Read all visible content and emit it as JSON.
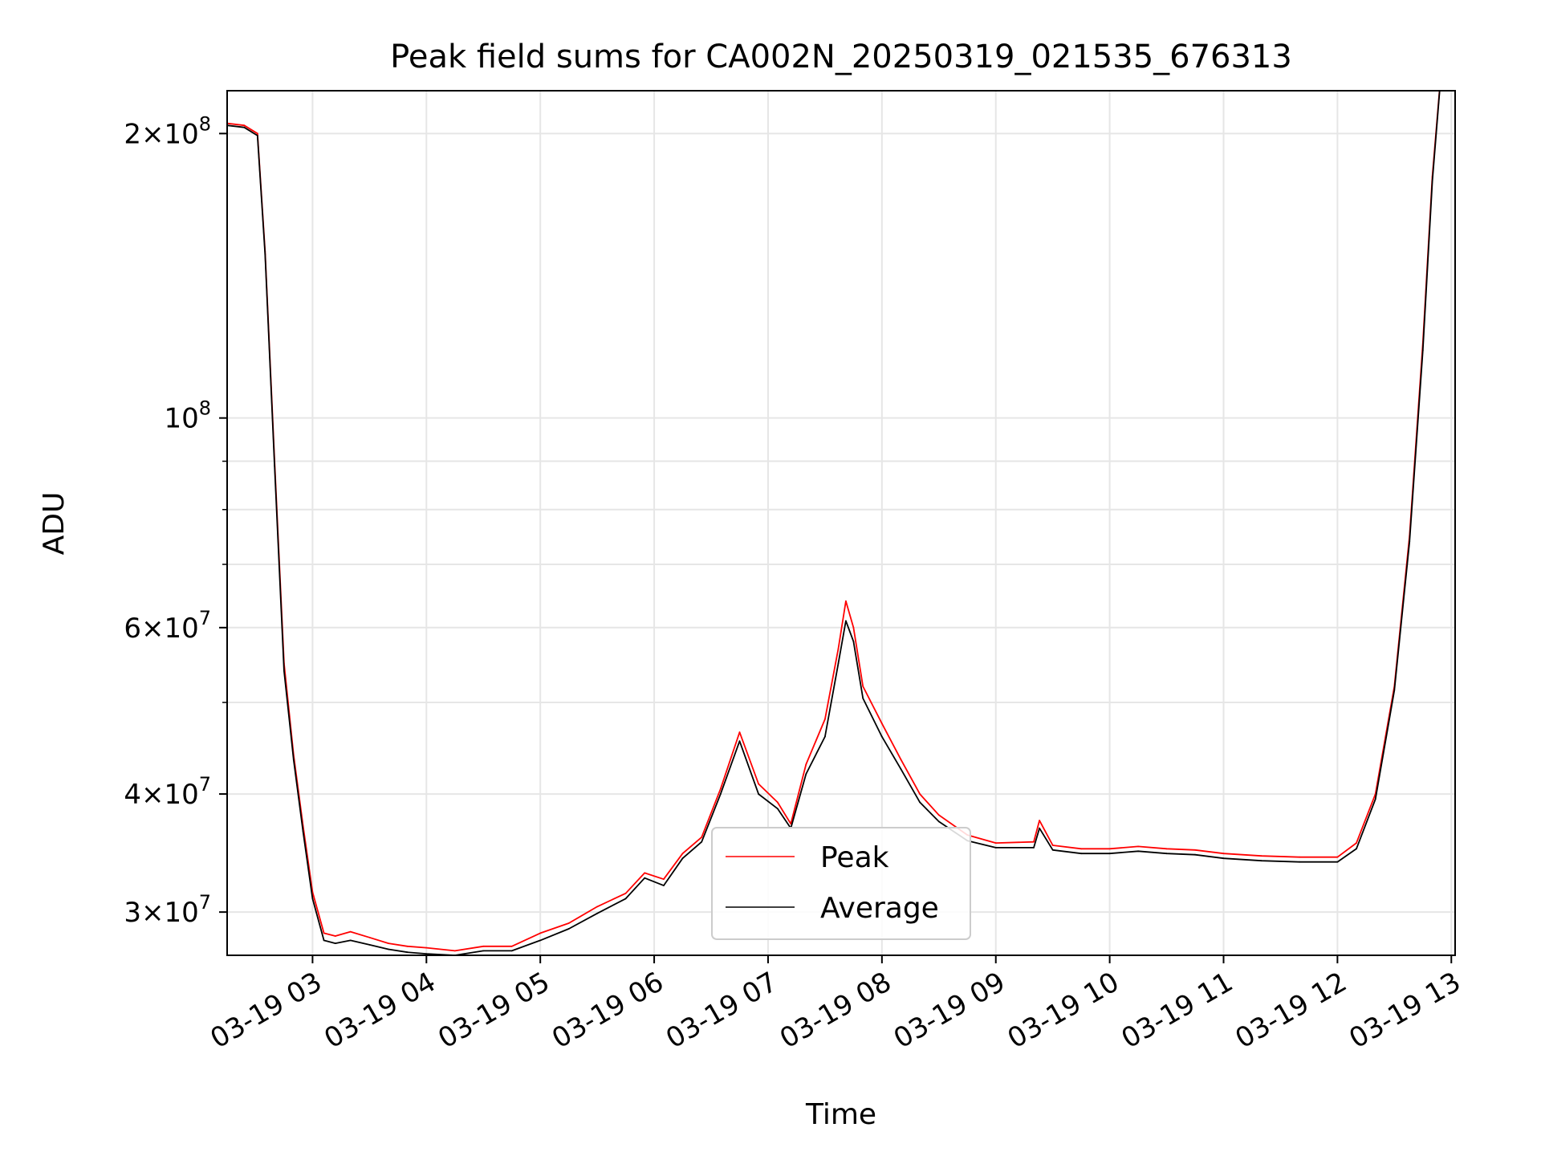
{
  "chart_data": {
    "type": "line",
    "title": "Peak field sums for CA002N_20250319_021535_676313",
    "xlabel": "Time",
    "ylabel": "ADU",
    "xlim": [
      "03-19 02:15",
      "03-19 13:02"
    ],
    "ylim": [
      27000000,
      222000000
    ],
    "yscale": "log",
    "grid": true,
    "legend": {
      "position": "bottom-center"
    },
    "x_ticks": [
      "03-19 03",
      "03-19 04",
      "03-19 05",
      "03-19 06",
      "03-19 07",
      "03-19 08",
      "03-19 09",
      "03-19 10",
      "03-19 11",
      "03-19 12",
      "03-19 13"
    ],
    "x_tick_values": [
      "03-19 03:00",
      "03-19 04:00",
      "03-19 05:00",
      "03-19 06:00",
      "03-19 07:00",
      "03-19 08:00",
      "03-19 09:00",
      "03-19 10:00",
      "03-19 11:00",
      "03-19 12:00",
      "03-19 13:00"
    ],
    "y_ticks": [
      {
        "value": 200000000,
        "mant": "2",
        "exp": "8"
      },
      {
        "value": 100000000,
        "mant": "",
        "exp": "8"
      },
      {
        "value": 60000000,
        "mant": "6",
        "exp": "7"
      },
      {
        "value": 40000000,
        "mant": "4",
        "exp": "7"
      },
      {
        "value": 30000000,
        "mant": "3",
        "exp": "7"
      }
    ],
    "y_minor_ticks": [
      50000000,
      70000000,
      80000000,
      90000000
    ],
    "series": [
      {
        "name": "Peak",
        "color": "#ff0000",
        "x": [
          "03-19 02:15",
          "03-19 02:24",
          "03-19 02:31",
          "03-19 02:35",
          "03-19 02:40",
          "03-19 02:45",
          "03-19 02:50",
          "03-19 02:55",
          "03-19 03:00",
          "03-19 03:06",
          "03-19 03:12",
          "03-19 03:20",
          "03-19 03:30",
          "03-19 03:40",
          "03-19 03:50",
          "03-19 04:00",
          "03-19 04:15",
          "03-19 04:30",
          "03-19 04:45",
          "03-19 05:00",
          "03-19 05:15",
          "03-19 05:30",
          "03-19 05:45",
          "03-19 05:55",
          "03-19 06:05",
          "03-19 06:15",
          "03-19 06:25",
          "03-19 06:35",
          "03-19 06:45",
          "03-19 06:55",
          "03-19 07:05",
          "03-19 07:12",
          "03-19 07:20",
          "03-19 07:30",
          "03-19 07:37",
          "03-19 07:41",
          "03-19 07:45",
          "03-19 07:50",
          "03-19 08:00",
          "03-19 08:10",
          "03-19 08:20",
          "03-19 08:30",
          "03-19 08:45",
          "03-19 09:00",
          "03-19 09:20",
          "03-19 09:23",
          "03-19 09:30",
          "03-19 09:45",
          "03-19 10:00",
          "03-19 10:15",
          "03-19 10:30",
          "03-19 10:45",
          "03-19 11:00",
          "03-19 11:20",
          "03-19 11:40",
          "03-19 12:00",
          "03-19 12:10",
          "03-19 12:20",
          "03-19 12:30",
          "03-19 12:38",
          "03-19 12:45",
          "03-19 12:50",
          "03-19 12:54"
        ],
        "values": [
          205000000,
          204000000,
          200000000,
          150000000,
          90000000,
          55000000,
          44000000,
          37000000,
          31500000,
          28500000,
          28300000,
          28600000,
          28200000,
          27800000,
          27600000,
          27500000,
          27300000,
          27600000,
          27600000,
          28500000,
          29200000,
          30400000,
          31400000,
          33000000,
          32500000,
          34600000,
          36000000,
          40500000,
          46500000,
          41000000,
          39200000,
          37200000,
          43000000,
          48000000,
          57000000,
          64000000,
          60000000,
          52000000,
          47500000,
          43500000,
          40000000,
          38000000,
          36200000,
          35500000,
          35600000,
          37500000,
          35300000,
          35000000,
          35000000,
          35200000,
          35000000,
          34900000,
          34600000,
          34400000,
          34300000,
          34300000,
          35500000,
          40000000,
          52000000,
          75000000,
          120000000,
          180000000,
          225000000
        ]
      },
      {
        "name": "Average",
        "color": "#000000",
        "x": [
          "03-19 02:15",
          "03-19 02:24",
          "03-19 02:31",
          "03-19 02:35",
          "03-19 02:40",
          "03-19 02:45",
          "03-19 02:50",
          "03-19 02:55",
          "03-19 03:00",
          "03-19 03:06",
          "03-19 03:12",
          "03-19 03:20",
          "03-19 03:30",
          "03-19 03:40",
          "03-19 03:50",
          "03-19 04:00",
          "03-19 04:15",
          "03-19 04:30",
          "03-19 04:45",
          "03-19 05:00",
          "03-19 05:15",
          "03-19 05:30",
          "03-19 05:45",
          "03-19 05:55",
          "03-19 06:05",
          "03-19 06:15",
          "03-19 06:25",
          "03-19 06:35",
          "03-19 06:45",
          "03-19 06:55",
          "03-19 07:05",
          "03-19 07:12",
          "03-19 07:20",
          "03-19 07:30",
          "03-19 07:37",
          "03-19 07:41",
          "03-19 07:45",
          "03-19 07:50",
          "03-19 08:00",
          "03-19 08:10",
          "03-19 08:20",
          "03-19 08:30",
          "03-19 08:45",
          "03-19 09:00",
          "03-19 09:20",
          "03-19 09:23",
          "03-19 09:30",
          "03-19 09:45",
          "03-19 10:00",
          "03-19 10:15",
          "03-19 10:30",
          "03-19 10:45",
          "03-19 11:00",
          "03-19 11:20",
          "03-19 11:40",
          "03-19 12:00",
          "03-19 12:10",
          "03-19 12:20",
          "03-19 12:30",
          "03-19 12:38",
          "03-19 12:45",
          "03-19 12:50",
          "03-19 12:54"
        ],
        "values": [
          204000000,
          203000000,
          199000000,
          149000000,
          89000000,
          54000000,
          43500000,
          36500000,
          31000000,
          28000000,
          27800000,
          28000000,
          27700000,
          27400000,
          27200000,
          27100000,
          27000000,
          27300000,
          27300000,
          28000000,
          28800000,
          29900000,
          31000000,
          32600000,
          32000000,
          34200000,
          35600000,
          40000000,
          45500000,
          40000000,
          38600000,
          36800000,
          42000000,
          46000000,
          55000000,
          61000000,
          58000000,
          50500000,
          46000000,
          42500000,
          39200000,
          37400000,
          35700000,
          35100000,
          35100000,
          36800000,
          34900000,
          34600000,
          34600000,
          34800000,
          34600000,
          34500000,
          34200000,
          34000000,
          33900000,
          33900000,
          35000000,
          39500000,
          51500000,
          74000000,
          118000000,
          178000000,
          224000000
        ]
      }
    ]
  }
}
